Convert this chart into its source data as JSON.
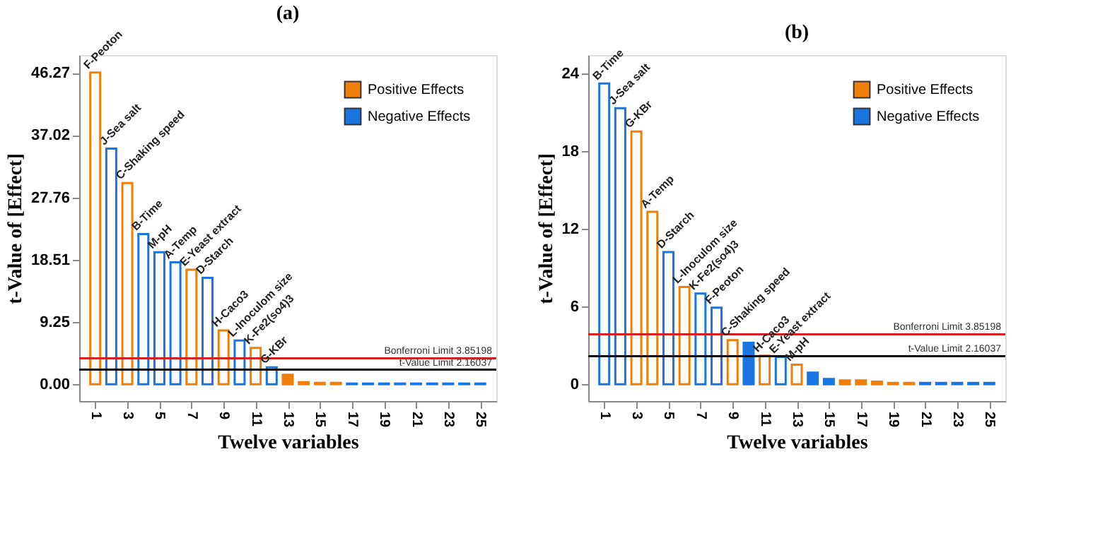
{
  "chart_data": [
    {
      "type": "bar",
      "title": "(a)",
      "xlabel": "Twelve variables",
      "ylabel": "t-Value of [Effect]",
      "x": [
        1,
        2,
        3,
        4,
        5,
        6,
        7,
        8,
        9,
        10,
        11,
        12,
        13,
        14,
        15,
        16,
        17,
        18,
        19,
        20,
        21,
        22,
        23,
        24,
        25
      ],
      "xlim": [
        0,
        26
      ],
      "xticks": [
        1,
        3,
        5,
        7,
        9,
        11,
        13,
        15,
        17,
        19,
        21,
        23,
        25
      ],
      "ylim": [
        -2.5,
        48.9
      ],
      "yticks": [
        {
          "value": 0,
          "label": "0.00"
        },
        9.25,
        18.51,
        27.76,
        37.02,
        46.27
      ],
      "series": [
        {
          "name": "Positive Effects",
          "color": "#f07f09",
          "values": [
            46.3,
            null,
            29.9,
            null,
            null,
            null,
            17.0,
            null,
            8.0,
            null,
            5.4,
            null,
            1.4,
            0.3,
            0.2,
            0.2,
            null,
            null,
            null,
            null,
            null,
            null,
            null,
            null,
            null
          ]
        },
        {
          "name": "Negative Effects",
          "color": "#1a75e0",
          "values": [
            null,
            35.0,
            null,
            22.3,
            19.6,
            18.1,
            null,
            15.8,
            null,
            6.5,
            null,
            2.5,
            null,
            null,
            null,
            null,
            0.1,
            0.1,
            0.1,
            0.1,
            0.1,
            0.1,
            0.1,
            0.1,
            0.1
          ]
        }
      ],
      "ref_lines": [
        {
          "axis": "y",
          "value": 3.85198,
          "label": "Bonferroni Limit 3.85198",
          "color": "#d42020"
        },
        {
          "axis": "y",
          "value": 2.16037,
          "label": "t-Value Limit 2.16037",
          "color": "#000000"
        }
      ],
      "annotations": [
        {
          "text": "F-Peoton",
          "x": 1,
          "y": 46.3
        },
        {
          "text": "J-Sea salt",
          "x": 2,
          "y": 35.0
        },
        {
          "text": "C-Shaking speed",
          "x": 3,
          "y": 29.9
        },
        {
          "text": "B-Time",
          "x": 4,
          "y": 22.3
        },
        {
          "text": "M-pH",
          "x": 5,
          "y": 19.6
        },
        {
          "text": "A-Temp",
          "x": 6,
          "y": 18.1
        },
        {
          "text": "E-Yeast extract",
          "x": 7,
          "y": 17.0
        },
        {
          "text": "D-Starch",
          "x": 8,
          "y": 15.8
        },
        {
          "text": "H-Caco3",
          "x": 9,
          "y": 8.0
        },
        {
          "text": "L-Inoculom size",
          "x": 10,
          "y": 6.5
        },
        {
          "text": "K-Fe2(so4)3",
          "x": 11,
          "y": 5.4
        },
        {
          "text": "G-KBr",
          "x": 12,
          "y": 2.5
        }
      ],
      "legend": "top right",
      "grid": false
    },
    {
      "type": "bar",
      "title": "(b)",
      "xlabel": "Twelve variables",
      "ylabel": "t-Value of [Effect]",
      "x": [
        1,
        2,
        3,
        4,
        5,
        6,
        7,
        8,
        9,
        10,
        11,
        12,
        13,
        14,
        15,
        16,
        17,
        18,
        19,
        20,
        21,
        22,
        23,
        24,
        25
      ],
      "xlim": [
        0,
        26
      ],
      "xticks": [
        1,
        3,
        5,
        7,
        9,
        11,
        13,
        15,
        17,
        19,
        21,
        23,
        25
      ],
      "ylim": [
        -1.3,
        25.4
      ],
      "yticks": [
        0,
        6,
        12,
        18,
        24
      ],
      "series": [
        {
          "name": "Positive Effects",
          "color": "#f07f09",
          "values": [
            null,
            null,
            19.5,
            13.3,
            null,
            7.5,
            null,
            null,
            3.4,
            null,
            2.2,
            null,
            1.5,
            null,
            null,
            0.3,
            0.3,
            0.2,
            0.1,
            0.1,
            null,
            null,
            null,
            null,
            null
          ]
        },
        {
          "name": "Negative Effects",
          "color": "#1a75e0",
          "values": [
            23.2,
            21.3,
            null,
            null,
            10.2,
            null,
            7.0,
            5.9,
            null,
            3.2,
            null,
            2.1,
            null,
            0.9,
            0.4,
            null,
            null,
            null,
            null,
            null,
            0.1,
            0.1,
            0.1,
            0.1,
            0.1
          ]
        }
      ],
      "ref_lines": [
        {
          "axis": "y",
          "value": 3.85198,
          "label": "Bonferroni Limit 3.85198",
          "color": "#d42020"
        },
        {
          "axis": "y",
          "value": 2.16037,
          "label": "t-Value Limit 2.16037",
          "color": "#000000"
        }
      ],
      "annotations": [
        {
          "text": "B-Time",
          "x": 1,
          "y": 23.2
        },
        {
          "text": "J-Sea salt",
          "x": 2,
          "y": 21.3
        },
        {
          "text": "G-KBr",
          "x": 3,
          "y": 19.5
        },
        {
          "text": "A-Temp",
          "x": 4,
          "y": 13.3
        },
        {
          "text": "D-Starch",
          "x": 5,
          "y": 10.2
        },
        {
          "text": "L-Inoculom size",
          "x": 6,
          "y": 7.5
        },
        {
          "text": "K-Fe2(so4)3",
          "x": 7,
          "y": 7.0
        },
        {
          "text": "F-Peoton",
          "x": 8,
          "y": 5.9
        },
        {
          "text": "C-Shaking speed",
          "x": 9,
          "y": 3.4
        },
        {
          "text": "H-Caco3",
          "x": 11,
          "y": 2.2
        },
        {
          "text": "E-Yeast extract",
          "x": 12,
          "y": 2.1
        },
        {
          "text": "M-pH",
          "x": 13,
          "y": 1.5
        }
      ],
      "legend": "top right",
      "grid": false
    }
  ]
}
